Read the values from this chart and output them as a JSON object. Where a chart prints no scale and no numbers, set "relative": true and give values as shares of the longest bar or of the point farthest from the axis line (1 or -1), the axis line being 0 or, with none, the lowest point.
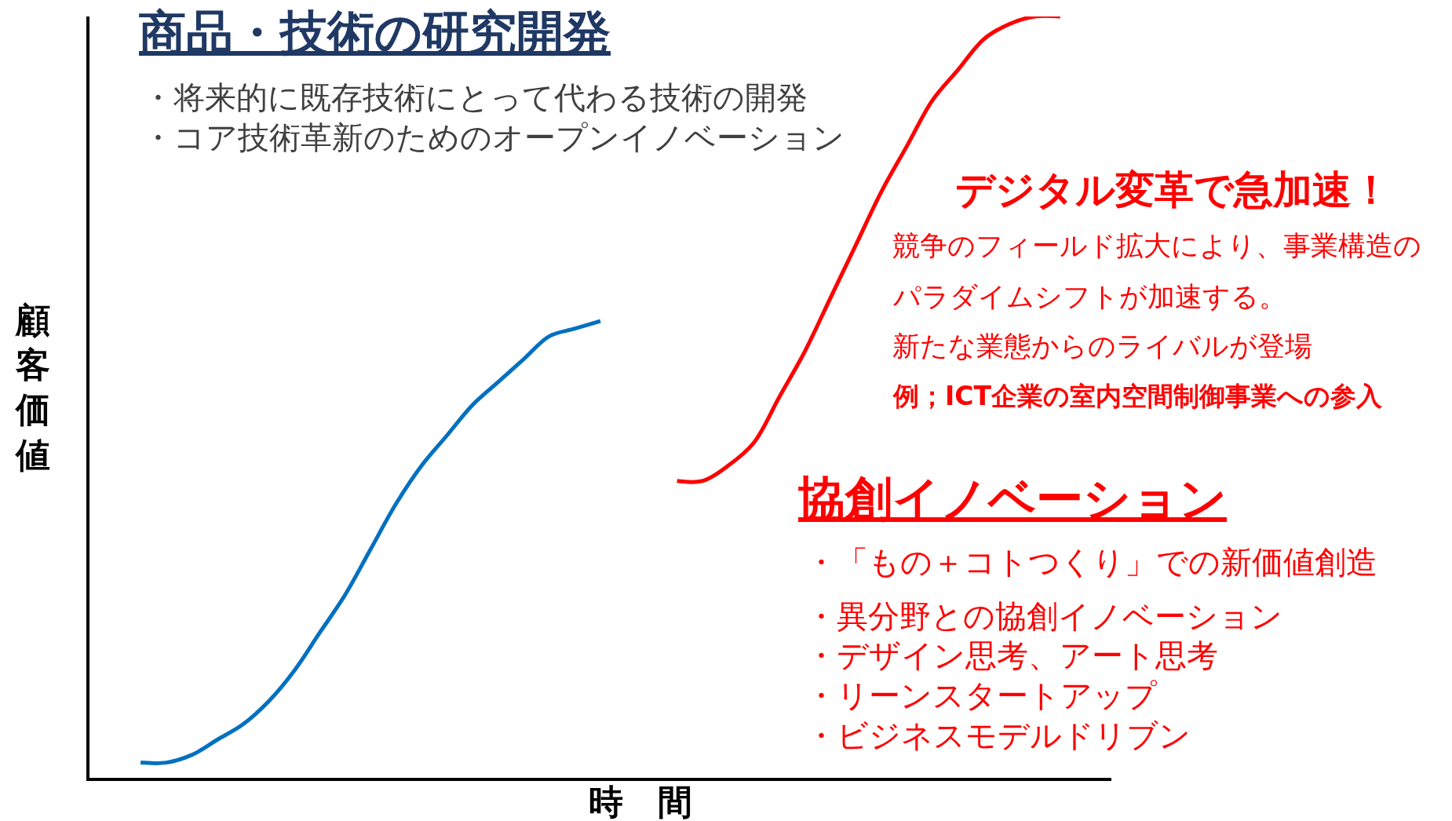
{
  "chart_data": {
    "type": "line",
    "relative": true,
    "xlabel": "時　間",
    "ylabel": "顧客価値",
    "marker": "none",
    "line_style": "solid",
    "categories": [
      null,
      null,
      null,
      null,
      null,
      null,
      null,
      null,
      null,
      null,
      null,
      null,
      null,
      null,
      null,
      null,
      null,
      null,
      null,
      null,
      null,
      null,
      null,
      null,
      null,
      null,
      null,
      null,
      null,
      null,
      null,
      null,
      null,
      null,
      null,
      null,
      null,
      null,
      null,
      null,
      null
    ],
    "series": [
      {
        "color": "#0070c0",
        "values": [
          null,
          null,
          0.02,
          0.02,
          0.03,
          0.05,
          0.07,
          0.1,
          0.14,
          0.19,
          0.24,
          0.3,
          0.36,
          0.41,
          0.45,
          0.49,
          0.52,
          0.55,
          0.58,
          0.59,
          0.6,
          null,
          null,
          null,
          null,
          null,
          null,
          null,
          null,
          null,
          null,
          null,
          null,
          null,
          null,
          null,
          null,
          null,
          null,
          null,
          null
        ]
      },
      {
        "color": "#ff0000",
        "values": [
          null,
          null,
          null,
          null,
          null,
          null,
          null,
          null,
          null,
          null,
          null,
          null,
          null,
          null,
          null,
          null,
          null,
          null,
          null,
          null,
          null,
          null,
          null,
          0.39,
          0.39,
          0.41,
          0.44,
          0.5,
          0.56,
          0.63,
          0.7,
          0.77,
          0.83,
          0.89,
          0.93,
          0.97,
          0.99,
          1.0,
          1.0,
          null,
          null
        ]
      }
    ],
    "annotations": [
      "商品・技術の研究開発",
      "・将来的に既存技術にとって代わる技術の開発",
      "・コア技術革新のためのオープンイノベーション",
      "デジタル変革で急加速！",
      "競争のフィールド拡大により、事業構造の",
      "パラダイムシフトが加速する。",
      "新たな業態からのライバルが登場",
      "例；ICT企業の室内空間制御事業への参入",
      "協創イノベーション",
      "・「もの＋コトつくり」での新価値創造",
      "・異分野との協創イノベーション",
      "・デザイン思考、アート思考",
      "・リーンスタートアップ",
      "・ビジネスモデルドリブン"
    ]
  }
}
